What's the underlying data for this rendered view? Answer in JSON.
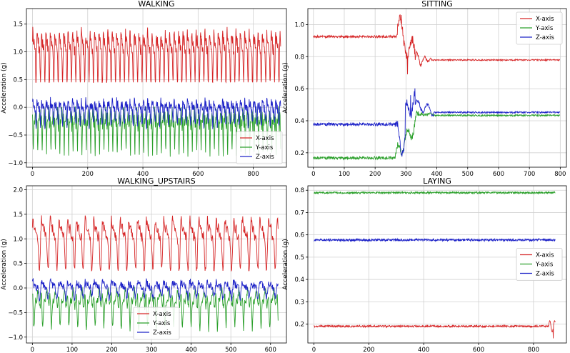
{
  "chart_data": [
    {
      "type": "line",
      "title": "WALKING",
      "xlabel": "",
      "ylabel": "Acceleration (g)",
      "xlim": [
        -22,
        920
      ],
      "ylim": [
        -1.08,
        1.78
      ],
      "xticks": [
        0,
        200,
        400,
        600,
        800
      ],
      "yticks": [
        -1.0,
        -0.5,
        0.0,
        0.5,
        1.0,
        1.5
      ],
      "ytick_labels": [
        "−1.0",
        "−0.5",
        "0.0",
        "0.5",
        "1.0",
        "1.5"
      ],
      "grid": true,
      "legend_position": "lower-right",
      "n_points": 900,
      "series": [
        {
          "name": "X-axis",
          "color": "#d62728",
          "base": 1.0,
          "amp": 0.45,
          "period": 16,
          "noise": 0.1,
          "min": 0.45,
          "max": 1.68,
          "pattern": "periodic",
          "values": []
        },
        {
          "name": "Y-axis",
          "color": "#2ca02c",
          "base": -0.2,
          "amp": 0.3,
          "period": 16,
          "noise": 0.08,
          "min": -0.97,
          "max": 0.15,
          "pattern": "periodic_down",
          "values": []
        },
        {
          "name": "Z-axis",
          "color": "#1f24c8",
          "base": -0.05,
          "amp": 0.2,
          "period": 16,
          "noise": 0.08,
          "min": -0.55,
          "max": 0.5,
          "pattern": "periodic",
          "values": []
        }
      ]
    },
    {
      "type": "line",
      "title": "SITTING",
      "xlabel": "",
      "ylabel": "Acceleration (g)",
      "xlim": [
        -18,
        820
      ],
      "ylim": [
        0.11,
        1.1
      ],
      "xticks": [
        0,
        100,
        200,
        300,
        400,
        500,
        600,
        700,
        800
      ],
      "yticks": [
        0.2,
        0.4,
        0.6,
        0.8,
        1.0
      ],
      "ytick_labels": [
        "0.2",
        "0.4",
        "0.6",
        "0.8",
        "1.0"
      ],
      "grid": true,
      "legend_position": "upper-right",
      "n_points": 800,
      "series": [
        {
          "name": "X-axis",
          "color": "#d62728",
          "pattern": "sitting_x",
          "values": []
        },
        {
          "name": "Y-axis",
          "color": "#2ca02c",
          "pattern": "sitting_y",
          "values": []
        },
        {
          "name": "Z-axis",
          "color": "#1f24c8",
          "pattern": "sitting_z",
          "values": []
        }
      ]
    },
    {
      "type": "line",
      "title": "WALKING_UPSTAIRS",
      "xlabel": "",
      "ylabel": "Acceleration (g)",
      "xlim": [
        -15,
        640
      ],
      "ylim": [
        -1.12,
        2.08
      ],
      "xticks": [
        0,
        100,
        200,
        300,
        400,
        500,
        600
      ],
      "yticks": [
        -1.0,
        -0.5,
        0.0,
        0.5,
        1.0,
        1.5,
        2.0
      ],
      "ytick_labels": [
        "−1.0",
        "−0.5",
        "0.0",
        "0.5",
        "1.0",
        "1.5",
        "2.0"
      ],
      "grid": true,
      "legend_position": "lower-center",
      "n_points": 620,
      "series": [
        {
          "name": "X-axis",
          "color": "#d62728",
          "base": 1.0,
          "amp": 0.5,
          "period": 22,
          "noise": 0.1,
          "min": 0.35,
          "max": 1.93,
          "pattern": "periodic",
          "values": []
        },
        {
          "name": "Y-axis",
          "color": "#2ca02c",
          "base": -0.2,
          "amp": 0.3,
          "period": 22,
          "noise": 0.08,
          "min": -0.95,
          "max": 0.12,
          "pattern": "periodic_down",
          "values": []
        },
        {
          "name": "Z-axis",
          "color": "#1f24c8",
          "base": 0.0,
          "amp": 0.15,
          "period": 22,
          "noise": 0.08,
          "min": -0.45,
          "max": 0.37,
          "pattern": "periodic",
          "values": []
        }
      ]
    },
    {
      "type": "line",
      "title": "LAYING",
      "xlabel": "",
      "ylabel": "Acceleration (g)",
      "xlim": [
        -22,
        920
      ],
      "ylim": [
        0.115,
        0.82
      ],
      "xticks": [
        0,
        200,
        400,
        600,
        800
      ],
      "yticks": [
        0.2,
        0.3,
        0.4,
        0.5,
        0.6,
        0.7,
        0.8
      ],
      "ytick_labels": [
        "0.2",
        "0.3",
        "0.4",
        "0.5",
        "0.6",
        "0.7",
        "0.8"
      ],
      "grid": true,
      "legend_position": "center-right",
      "n_points": 880,
      "series": [
        {
          "name": "X-axis",
          "color": "#d62728",
          "base": 0.19,
          "noise": 0.004,
          "pattern": "flat_x",
          "values": []
        },
        {
          "name": "Y-axis",
          "color": "#2ca02c",
          "base": 0.789,
          "noise": 0.004,
          "pattern": "flat",
          "values": []
        },
        {
          "name": "Z-axis",
          "color": "#1f24c8",
          "base": 0.577,
          "noise": 0.005,
          "pattern": "flat",
          "values": []
        }
      ]
    }
  ]
}
